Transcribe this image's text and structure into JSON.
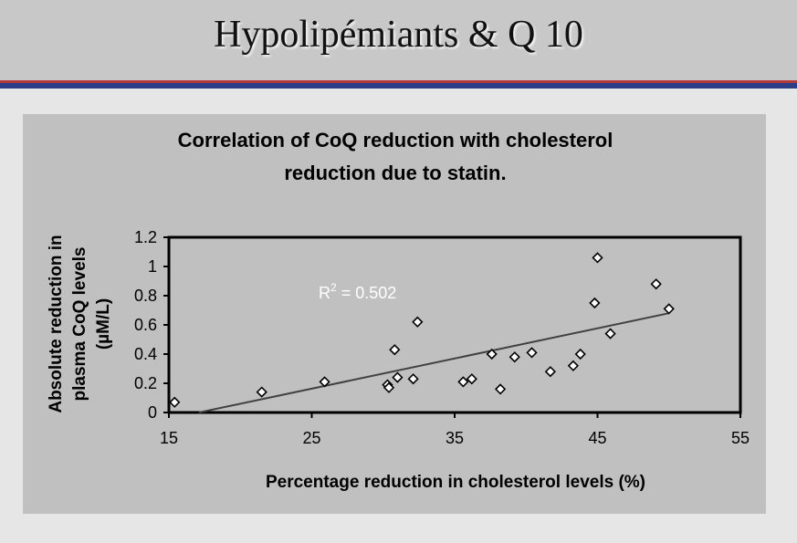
{
  "slide": {
    "title": "Hypolipémiants & Q 10"
  },
  "chart_data": {
    "type": "scatter",
    "title_lines": [
      "Correlation of CoQ reduction with cholesterol",
      "reduction due to statin."
    ],
    "xlabel": "Percentage reduction in cholesterol levels (%)",
    "ylabel_lines": [
      "Absolute reduction in",
      "plasma CoQ levels",
      "(µM/L)"
    ],
    "xlim": [
      15,
      55
    ],
    "ylim": [
      0,
      1.2
    ],
    "x_ticks": [
      15,
      25,
      35,
      45,
      55
    ],
    "y_ticks": [
      0,
      0.2,
      0.4,
      0.6,
      0.8,
      1,
      1.2
    ],
    "annotation": {
      "base": "R",
      "sup": "2",
      "text": " = 0.502"
    },
    "trendline": {
      "x": [
        17.1,
        50
      ],
      "y": [
        0,
        0.68
      ]
    },
    "series": [
      {
        "marker": "diamond",
        "x": [
          15.4,
          21.5,
          25.9,
          30.3,
          30.4,
          30.8,
          31.0,
          32.1,
          32.4,
          35.6,
          36.2,
          37.6,
          38.2,
          39.2,
          40.4,
          41.7,
          43.3,
          43.8,
          44.8,
          45.0,
          45.9,
          49.1,
          50.0
        ],
        "y": [
          0.07,
          0.14,
          0.21,
          0.19,
          0.17,
          0.43,
          0.24,
          0.23,
          0.62,
          0.21,
          0.23,
          0.4,
          0.16,
          0.38,
          0.41,
          0.28,
          0.32,
          0.4,
          0.75,
          1.06,
          0.54,
          0.88,
          0.71
        ]
      }
    ],
    "colors": {
      "plot_background": "#c0c0c0",
      "axis": "#000000",
      "marker_fill": "#ffffff",
      "marker_stroke": "#000000",
      "trendline": "#404040",
      "annotation": "#ffffff"
    }
  }
}
